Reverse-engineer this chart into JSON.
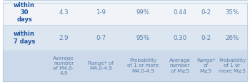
{
  "col_headers": [
    "Average\nnumber\nof M4.0-\n4.9",
    "Range* of\nM4.0-4.9",
    "Probability\nof 1 or more\nM4.0-4.9",
    "Average\nnumber\nof M≥5",
    "Range*\nof\nM≥5",
    "Probability\nof 1 or\nmore M≥5"
  ],
  "row_headers": [
    "within\n7 days",
    "within\n30\ndays"
  ],
  "data": [
    [
      "2.9",
      "0-7",
      "95%",
      "0.30",
      "0-2",
      "26%"
    ],
    [
      "4.3",
      "1-9",
      "99%",
      "0.44",
      "0-2",
      "35%"
    ]
  ],
  "header_bg": "#ccd9ea",
  "row_bg_odd": "#dce6f1",
  "row_bg_even": "#f0f4f9",
  "header_text_color": "#5a7fa8",
  "row_header_text_color": "#2056a0",
  "data_text_color": "#5a7fa8",
  "border_color": "#ffffff",
  "figwidth": 3.5,
  "figheight": 1.18,
  "dpi": 100
}
